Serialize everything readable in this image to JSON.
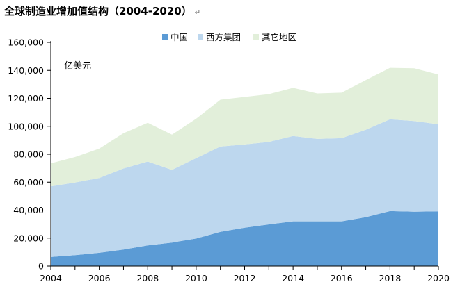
{
  "title": "全球制造业增加值结构（2004-2020）",
  "title_mark": "↵",
  "chart_data": {
    "type": "area",
    "stacked": true,
    "title": "全球制造业增加值结构（2004-2020）",
    "unit_label": "亿美元",
    "x": [
      2004,
      2005,
      2006,
      2007,
      2008,
      2009,
      2010,
      2011,
      2012,
      2013,
      2014,
      2015,
      2016,
      2017,
      2018,
      2019,
      2020
    ],
    "x_tick_labels": [
      "2004",
      "2006",
      "2008",
      "2010",
      "2012",
      "2014",
      "2016",
      "2018",
      "2020"
    ],
    "y_tick_labels": [
      "0",
      "20,000",
      "40,000",
      "60,000",
      "80,000",
      "100,000",
      "120,000",
      "140,000",
      "160,000"
    ],
    "ylim": [
      0,
      160000
    ],
    "legend_position": "top",
    "series": [
      {
        "name": "中国",
        "color": "#5b9bd5",
        "values": [
          6500,
          7800,
          9500,
          11800,
          14800,
          16800,
          19700,
          24500,
          27500,
          29800,
          32000,
          32000,
          32000,
          35000,
          39300,
          38900,
          39100
        ]
      },
      {
        "name": "西方集团",
        "color": "#bdd7ee",
        "values": [
          50500,
          52000,
          53500,
          58000,
          60000,
          52000,
          57500,
          61000,
          59500,
          59000,
          61000,
          59000,
          59500,
          62500,
          65700,
          64800,
          62300
        ]
      },
      {
        "name": "其它地区",
        "color": "#e2efda",
        "values": [
          16500,
          18200,
          21000,
          25200,
          27700,
          25200,
          28200,
          33500,
          34000,
          34200,
          34500,
          32500,
          32500,
          35500,
          36800,
          37800,
          35600
        ]
      }
    ]
  }
}
